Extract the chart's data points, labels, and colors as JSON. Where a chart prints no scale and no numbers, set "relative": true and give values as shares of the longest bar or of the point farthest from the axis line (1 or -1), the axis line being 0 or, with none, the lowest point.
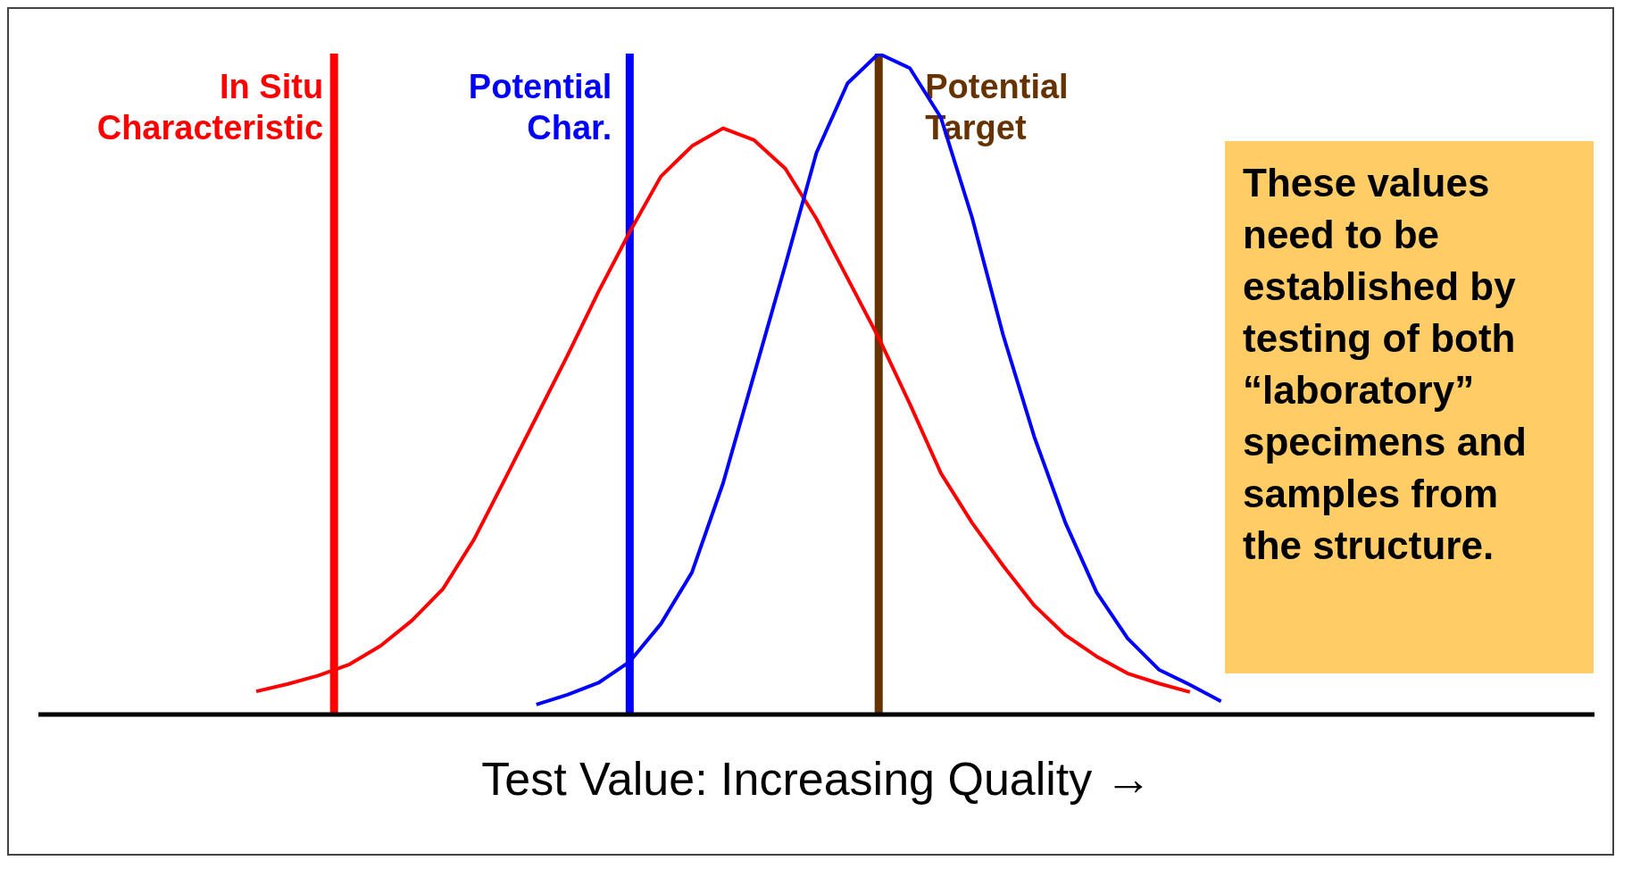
{
  "chart_data": {
    "type": "line",
    "relative": true,
    "grid": false,
    "marker": "none",
    "line_style": "solid",
    "xlabel": "Test Value: Increasing Quality →",
    "categories": [
      null,
      null,
      null,
      null,
      null,
      null,
      null,
      null,
      null,
      null,
      null,
      null,
      null,
      null,
      null,
      null,
      null,
      null,
      null,
      null,
      null,
      null,
      null,
      null,
      null,
      null,
      null,
      null,
      null,
      null,
      null,
      null,
      null,
      null,
      null,
      null,
      null,
      null,
      null,
      null,
      null,
      null,
      null,
      null,
      null,
      null,
      null,
      null,
      null,
      null,
      null
    ],
    "series": [
      {
        "color": "#ff0000",
        "values": [
          null,
          null,
          null,
          null,
          null,
          null,
          null,
          0.035,
          0.046,
          0.059,
          0.076,
          0.104,
          0.142,
          0.19,
          0.265,
          0.357,
          0.45,
          0.543,
          0.64,
          0.73,
          0.814,
          0.86,
          0.887,
          0.869,
          0.826,
          0.75,
          0.66,
          0.57,
          0.47,
          0.365,
          0.29,
          0.225,
          0.165,
          0.12,
          0.088,
          0.062,
          0.047,
          0.034,
          null,
          null,
          null,
          null,
          null,
          null,
          null,
          null,
          null,
          null,
          null,
          null,
          null
        ]
      },
      {
        "color": "#0000ff",
        "values": [
          null,
          null,
          null,
          null,
          null,
          null,
          null,
          null,
          null,
          null,
          null,
          null,
          null,
          null,
          null,
          null,
          0.015,
          0.03,
          0.048,
          0.08,
          0.137,
          0.215,
          0.35,
          0.515,
          0.68,
          0.85,
          0.955,
          1,
          0.978,
          0.903,
          0.752,
          0.574,
          0.42,
          0.29,
          0.185,
          0.115,
          0.068,
          0.045,
          0.02,
          null,
          null,
          null,
          null,
          null,
          null,
          null,
          null,
          null,
          null,
          null,
          null
        ]
      }
    ],
    "ref_lines": [
      {
        "axis": "x",
        "label": "In Situ Characteristic",
        "color": "#ff0000"
      },
      {
        "axis": "x",
        "label": "Potential Char.",
        "color": "#0000ff"
      },
      {
        "axis": "x",
        "label": "Potential Target",
        "color": "#663300"
      }
    ],
    "annotations": [
      "These values need to be established by testing of both “laboratory” specimens and samples from the structure."
    ]
  }
}
